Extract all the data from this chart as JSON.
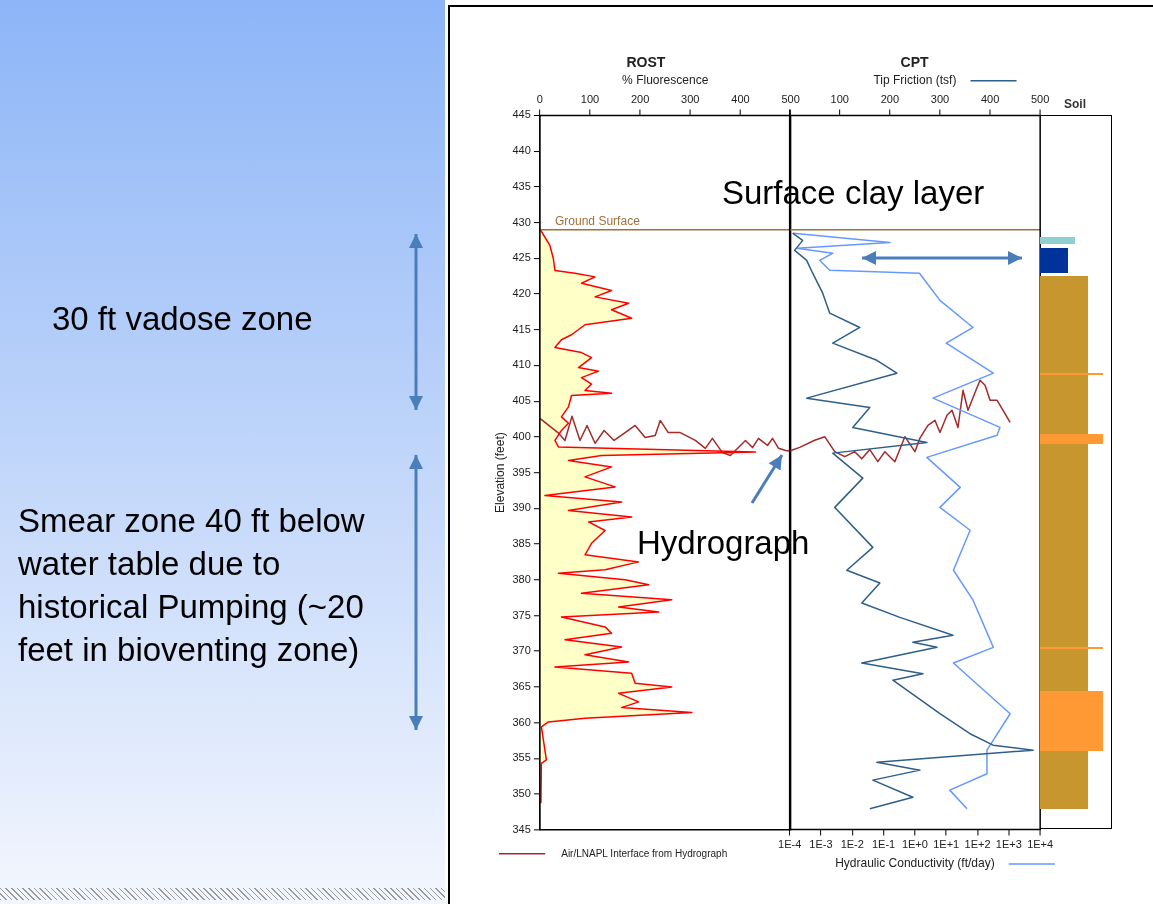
{
  "chart_data": [
    {
      "type": "line",
      "title": "ROST",
      "xlabel": "% Fluorescence",
      "ylabel": "Elevation (feet)",
      "xlim": [
        0,
        500
      ],
      "xticks": [
        0,
        100,
        200,
        300,
        400,
        500
      ],
      "ylim": [
        345,
        445
      ],
      "yticks": [
        345,
        350,
        355,
        360,
        365,
        370,
        375,
        380,
        385,
        390,
        395,
        400,
        405,
        410,
        415,
        420,
        425,
        430,
        435,
        440,
        445
      ],
      "grid": false,
      "legend": "bottom left",
      "marker": "none",
      "ref_lines": [
        {
          "axis": "y",
          "value": 429,
          "label": "Ground Surface",
          "color": "#a0703c"
        }
      ],
      "annotations": [
        "30 ft vadose zone",
        "Smear zone 40 ft below water table due to historical Pumping (~20 feet in bioventing zone)"
      ],
      "series": [
        {
          "type": "area",
          "color": "#ff0000",
          "x": [
            0,
            20,
            27,
            30,
            70,
            110,
            83,
            143,
            110,
            177,
            143,
            183,
            90,
            63,
            43,
            30,
            83,
            103,
            77,
            117,
            83,
            103,
            90,
            143,
            63,
            57,
            43,
            57,
            43,
            30,
            37,
            430,
            123,
            57,
            143,
            90,
            150,
            10,
            163,
            57,
            183,
            97,
            130,
            103,
            90,
            197,
            130,
            37,
            170,
            217,
            83,
            263,
            157,
            237,
            43,
            130,
            143,
            50,
            163,
            90,
            177,
            30,
            183,
            190,
            263,
            157,
            197,
            163,
            303,
            90,
            17,
            3,
            13,
            3,
            2
          ],
          "values": [
            429.1,
            426.8,
            424.9,
            423.3,
            422.9,
            422.4,
            421.5,
            420.5,
            419.6,
            418.7,
            417.8,
            416.6,
            415.7,
            414.3,
            413.6,
            412.5,
            411.8,
            411.1,
            409.7,
            409.2,
            408.3,
            407.4,
            406.5,
            406.1,
            405.8,
            404.2,
            402.8,
            401.9,
            400.9,
            399.5,
            398.6,
            397.9,
            397.4,
            396.7,
            395.8,
            394.4,
            393,
            391.8,
            390.9,
            389.7,
            388.8,
            388.1,
            386.9,
            385.1,
            383.5,
            382.5,
            381.4,
            380.9,
            380,
            379.3,
            378.1,
            377.2,
            376.2,
            375.5,
            374.8,
            373.4,
            372.5,
            371.6,
            370.6,
            369.5,
            368.5,
            367.8,
            366.9,
            365.5,
            365,
            364.1,
            362.9,
            362.1,
            361.4,
            360.6,
            360.1,
            359.4,
            354.8,
            354.3,
            348.7
          ]
        },
        {
          "name": "Air/LNAPL Interface from Hydrograph",
          "color": "#a52a2a",
          "x": [
            0,
            36,
            50,
            64,
            80,
            94,
            110,
            128,
            148,
            170,
            190,
            210,
            230,
            240,
            256,
            280,
            310,
            330,
            344,
            364,
            380,
            410,
            424,
            436,
            454,
            464,
            476,
            490,
            500
          ],
          "values": [
            402.6,
            400.6,
            399.5,
            402.9,
            399.5,
            401.6,
            399.1,
            400.9,
            399.5,
            400.6,
            401.6,
            399.9,
            400.2,
            402.3,
            400.6,
            400.6,
            399.5,
            398.4,
            399.8,
            397.8,
            397.4,
            399.5,
            398.5,
            399.8,
            398.8,
            399.8,
            398.4,
            398.1,
            398
          ]
        }
      ]
    },
    {
      "type": "line",
      "title": "CPT",
      "x2label": "Tip Friction (tsf)",
      "x2lim": [
        0,
        500
      ],
      "x2ticks": [
        {
          "value": 0,
          "label": null
        },
        100,
        200,
        300,
        400,
        500
      ],
      "xlabel": "Hydraulic Conductivity (ft/day)",
      "xlim": [
        0.0001,
        10000
      ],
      "xticks": [
        {
          "value": 0.0001,
          "label": "1E-4"
        },
        {
          "value": 0.001,
          "label": "1E-3"
        },
        {
          "value": 0.01,
          "label": "1E-2"
        },
        {
          "value": 0.1,
          "label": "1E-1"
        },
        {
          "value": 1,
          "label": "1E+0"
        },
        {
          "value": 10,
          "label": "1E+1"
        },
        {
          "value": 100,
          "label": "1E+2"
        },
        {
          "value": 1000,
          "label": "1E+3"
        },
        {
          "value": 10000,
          "label": "1E+4"
        }
      ],
      "log": "x",
      "ylim": [
        345,
        445
      ],
      "tick_labels": "x",
      "grid": false,
      "legend": false,
      "marker": "none",
      "ref_lines": [
        {
          "axis": "y",
          "value": 429,
          "color": "#a0703c"
        }
      ],
      "annotations": [
        "Surface clay layer",
        "Hydrograph",
        "Soil"
      ],
      "series": [
        {
          "axis": "x2",
          "color": "#2e5f8a",
          "x": [
            6,
            26,
            10,
            34,
            46,
            66,
            80,
            140,
            86,
            174,
            214,
            34,
            160,
            126,
            274,
            86,
            146,
            90,
            166,
            114,
            180,
            144,
            220,
            326,
            246,
            294,
            144,
            266,
            206,
            300,
            360,
            406,
            486,
            174,
            260,
            166,
            246,
            160
          ],
          "values": [
            428.5,
            427.5,
            426.1,
            424.7,
            422.9,
            420.1,
            417.3,
            415.3,
            413.1,
            410.7,
            408.9,
            405.4,
            404.1,
            401.3,
            399.2,
            397.7,
            394.2,
            390.1,
            384.5,
            381.3,
            379.5,
            376.7,
            374.7,
            372.2,
            371.2,
            370.5,
            368.3,
            366.8,
            365.9,
            361.2,
            358.4,
            356.8,
            356.1,
            354.4,
            353.3,
            351.9,
            349.5,
            347.9
          ]
        },
        {
          "color": "#6699ff",
          "x": [
            0.00013,
            0.16,
            0.00017,
            0.0024,
            0.00091,
            0.0019,
            1.4,
            6.3,
            72,
            10,
            320,
            3.8,
            520,
            420,
            2.4,
            28,
            6.3,
            58,
            17,
            72,
            320,
            17,
            1100,
            200,
            200,
            13,
            46
          ],
          "values": [
            428.5,
            427.2,
            426.4,
            425.7,
            424.7,
            423.3,
            422.9,
            419.1,
            415.3,
            413.1,
            408.9,
            405.4,
            401.3,
            400.2,
            397.1,
            392.9,
            390.1,
            386.9,
            381.3,
            377.1,
            370.5,
            368.3,
            361.2,
            356.1,
            352.8,
            350.5,
            347.9
          ]
        },
        {
          "axis": "x2",
          "color": "#a52a2a",
          "x": [
            0,
            20,
            50,
            70,
            90,
            110,
            130,
            144,
            160,
            176,
            190,
            210,
            230,
            250,
            260,
            276,
            290,
            300,
            314,
            324,
            336,
            346,
            356,
            370,
            380,
            390,
            400,
            414,
            426,
            440
          ],
          "values": [
            398,
            398.5,
            399.5,
            400,
            397.9,
            397.2,
            397.9,
            396.9,
            398.2,
            396.5,
            397.9,
            396.5,
            400,
            397.9,
            399.8,
            401.6,
            402.3,
            400.6,
            403,
            403.7,
            401.3,
            406.5,
            403.7,
            406.2,
            407.9,
            407.2,
            405.1,
            405.1,
            403.7,
            402
          ]
        }
      ]
    }
  ]
}
